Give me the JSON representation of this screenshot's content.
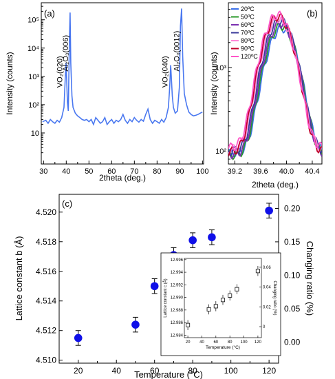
{
  "colors": {
    "xrd_line": "#4a78f0",
    "marker_blue": "#1010e8",
    "inset_marker": "#222222",
    "errorbar": "#000000",
    "temps": [
      "#3a6fe8",
      "#2a9a2a",
      "#7a2fb0",
      "#3a3a9a",
      "#ff88d8",
      "#c0002a",
      "#ff55c8"
    ]
  },
  "chart_data": [
    {
      "type": "line",
      "panel_label": "(a)",
      "xlabel": "2theta (deg.)",
      "ylabel": "Intensity (counts)",
      "xlim": [
        29,
        100.5
      ],
      "ylim": [
        0.8,
        400000
      ],
      "yscale": "log",
      "xticks": [
        30,
        40,
        50,
        60,
        70,
        80,
        90,
        100
      ],
      "yticks": [
        {
          "v": 10,
          "label": "10"
        },
        {
          "v": 100,
          "label": "10²"
        },
        {
          "v": 1000,
          "label": "10³"
        },
        {
          "v": 10000,
          "label": "10⁴"
        },
        {
          "v": 100000,
          "label": "10⁵"
        }
      ],
      "series": [
        {
          "x": [
            29.5,
            31,
            32,
            33,
            34,
            35,
            36,
            37,
            38,
            39,
            39.5,
            39.9,
            40.2,
            40.5,
            40.9,
            41.4,
            41.7,
            42,
            42.5,
            43,
            44,
            45,
            46,
            47,
            48,
            49,
            50,
            51,
            52,
            53,
            54,
            55,
            56,
            57,
            58,
            59,
            60,
            61,
            62,
            63,
            64,
            65,
            66,
            67,
            68,
            69,
            70,
            71,
            72,
            73,
            74,
            75,
            76,
            77,
            78,
            79,
            80,
            81,
            82,
            83,
            84,
            85,
            85.5,
            86,
            86.3,
            86.7,
            87.2,
            88,
            89,
            89.8,
            90.3,
            90.8,
            91.3,
            92,
            93,
            94,
            95,
            96,
            97,
            98,
            99,
            100
          ],
          "y": [
            25,
            28,
            22,
            30,
            25,
            22,
            28,
            24,
            35,
            80,
            700,
            3000,
            700,
            120,
            60,
            20000,
            180000,
            3000,
            200,
            80,
            50,
            40,
            35,
            30,
            28,
            30,
            25,
            30,
            20,
            35,
            28,
            22,
            25,
            35,
            20,
            25,
            30,
            22,
            28,
            25,
            30,
            45,
            28,
            22,
            30,
            25,
            35,
            28,
            24,
            30,
            26,
            45,
            70,
            30,
            22,
            28,
            25,
            22,
            30,
            24,
            35,
            80,
            350,
            2500,
            900,
            200,
            80,
            50,
            60,
            400,
            60000,
            250000,
            5000,
            250,
            100,
            55,
            45,
            40,
            42,
            45,
            50,
            55
          ]
        }
      ],
      "annotations": [
        {
          "text": "VO₂(020)",
          "x": 38.3,
          "y": 400
        },
        {
          "text": "Al₂O₃(006)",
          "x": 40.8,
          "y": 1500
        },
        {
          "text": "VO₂(040)",
          "x": 84.6,
          "y": 400
        },
        {
          "text": "Al₂O₃(0012)",
          "x": 89.8,
          "y": 1500
        }
      ]
    },
    {
      "type": "line",
      "panel_label": "(b)",
      "xlabel": "2theta (deg.)",
      "ylabel": "Intensity (counts)",
      "xlim": [
        39.1,
        40.55
      ],
      "ylim": [
        70,
        6000
      ],
      "yscale": "log",
      "xticks": [
        39.2,
        39.6,
        40.0,
        40.4
      ],
      "xticklabels": [
        "39.2",
        "39.6",
        "40.0",
        "40.4"
      ],
      "yticks": [
        {
          "v": 100,
          "label": "10²"
        },
        {
          "v": 1000,
          "label": "10³"
        }
      ],
      "legend": [
        "20ºC",
        "50ºC",
        "60ºC",
        "70ºC",
        "80ºC",
        "90ºC",
        "120ºC"
      ],
      "series": [
        {
          "name": "20ºC",
          "center": 39.93,
          "peak": 2900,
          "base": 95,
          "width": 0.18
        },
        {
          "name": "50ºC",
          "center": 39.92,
          "peak": 3100,
          "base": 90,
          "width": 0.18
        },
        {
          "name": "60ºC",
          "center": 39.91,
          "peak": 3300,
          "base": 92,
          "width": 0.18
        },
        {
          "name": "70ºC",
          "center": 39.9,
          "peak": 3600,
          "base": 100,
          "width": 0.18
        },
        {
          "name": "80ºC",
          "center": 39.88,
          "peak": 3800,
          "base": 105,
          "width": 0.18
        },
        {
          "name": "90ºC",
          "center": 39.87,
          "peak": 4000,
          "base": 98,
          "width": 0.18
        },
        {
          "name": "120ºC",
          "center": 39.86,
          "peak": 4200,
          "base": 110,
          "width": 0.18
        }
      ]
    },
    {
      "type": "scatter",
      "panel_label": "(c)",
      "xlabel": "Temperature (°C)",
      "ylabel": "Lattice constant b (Å)",
      "ylabel2": "Changing ratio (%)",
      "xlim": [
        10,
        125
      ],
      "ylim": [
        4.5098,
        4.5212
      ],
      "ylim2": [
        -0.0316,
        0.2211
      ],
      "xticks": [
        20,
        40,
        60,
        80,
        100,
        120
      ],
      "yticks": [
        "4.510",
        "4.512",
        "4.514",
        "4.516",
        "4.518",
        "4.520"
      ],
      "yticks2": [
        "0.00",
        "0.05",
        "0.10",
        "0.15",
        "0.20"
      ],
      "x": [
        20,
        50,
        60,
        70,
        80,
        90,
        120
      ],
      "y": [
        4.5115,
        4.5124,
        4.515,
        4.5171,
        4.5181,
        4.5183,
        4.5201
      ],
      "yerr": 0.0005
    },
    {
      "type": "scatter",
      "inset": true,
      "xlabel": "Temperature (°C)",
      "ylabel": "Lattice constant c (Å)",
      "ylabel2": "Changing ratio (%)",
      "xlim": [
        15,
        125
      ],
      "ylim": [
        12.9836,
        12.9962
      ],
      "ylim2": [
        -0.0111,
        0.0689
      ],
      "xticks": [
        20,
        40,
        60,
        80,
        100,
        120
      ],
      "yticks": [
        "12.984",
        "12.986",
        "12.988",
        "12.990",
        "12.992",
        "12.994",
        "12.996"
      ],
      "yticks2": [
        "0",
        "0.02",
        "0.04",
        "0.06"
      ],
      "x": [
        20,
        50,
        60,
        70,
        80,
        90,
        120
      ],
      "y": [
        12.9856,
        12.9881,
        12.9886,
        12.9896,
        12.9903,
        12.9913,
        12.9942
      ],
      "yerr": 0.0008
    }
  ]
}
